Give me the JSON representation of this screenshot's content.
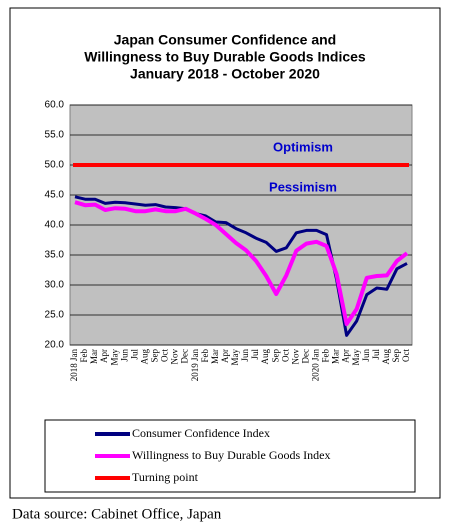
{
  "chart_data": {
    "type": "line",
    "title": [
      "Japan Consumer Confidence and",
      "Willingness to Buy Durable Goods Indices",
      "January 2018 - October 2020"
    ],
    "categories": [
      "2018 Jan",
      "Feb",
      "Mar",
      "Apr",
      "May",
      "Jun",
      "Jul",
      "Aug",
      "Sep",
      "Oct",
      "Nov",
      "Dec",
      "2019 Jan",
      "Feb",
      "Mar",
      "Apr",
      "May",
      "Jun",
      "Jul",
      "Aug",
      "Sep",
      "Oct",
      "Nov",
      "Dec",
      "2020 Jan",
      "Feb",
      "Mar",
      "Apr",
      "May",
      "Jun",
      "Jul",
      "Aug",
      "Sep",
      "Oct"
    ],
    "series": [
      {
        "name": "Consumer Confidence Index",
        "color": "#000080",
        "values": [
          44.7,
          44.3,
          44.3,
          43.6,
          43.8,
          43.7,
          43.5,
          43.3,
          43.4,
          43.0,
          42.9,
          42.7,
          41.9,
          41.5,
          40.5,
          40.4,
          39.4,
          38.7,
          37.8,
          37.1,
          35.6,
          36.2,
          38.7,
          39.1,
          39.1,
          38.4,
          30.9,
          21.6,
          24.0,
          28.4,
          29.5,
          29.3,
          32.7,
          33.6
        ]
      },
      {
        "name": "Willingness to Buy Durable Goods Index",
        "color": "#ff00ff",
        "values": [
          43.8,
          43.3,
          43.4,
          42.5,
          42.8,
          42.7,
          42.3,
          42.3,
          42.6,
          42.3,
          42.3,
          42.7,
          41.9,
          41.0,
          40.0,
          38.5,
          37.0,
          35.8,
          34.0,
          31.5,
          28.5,
          31.6,
          35.7,
          36.9,
          37.2,
          36.5,
          31.8,
          23.5,
          26.0,
          31.2,
          31.5,
          31.6,
          34.0,
          35.3
        ]
      }
    ],
    "reference_line": {
      "name": "Turning point",
      "value": 50,
      "color": "#ff0000"
    },
    "annotations": [
      "Optimism",
      "Pessimism"
    ],
    "ylim": [
      20,
      60
    ],
    "yticks": [
      {
        "value": 20,
        "label": "20.0"
      },
      {
        "value": 25,
        "label": "25.0"
      },
      {
        "value": 30,
        "label": "30.0"
      },
      {
        "value": 35,
        "label": "35.0"
      },
      {
        "value": 40,
        "label": "40.0"
      },
      {
        "value": 45,
        "label": "45.0"
      },
      {
        "value": 50,
        "label": "50.0"
      },
      {
        "value": 55,
        "label": "55.0"
      },
      {
        "value": 60,
        "label": "60.0"
      }
    ],
    "grid": true,
    "source": "Data source: Cabinet Office, Japan"
  }
}
